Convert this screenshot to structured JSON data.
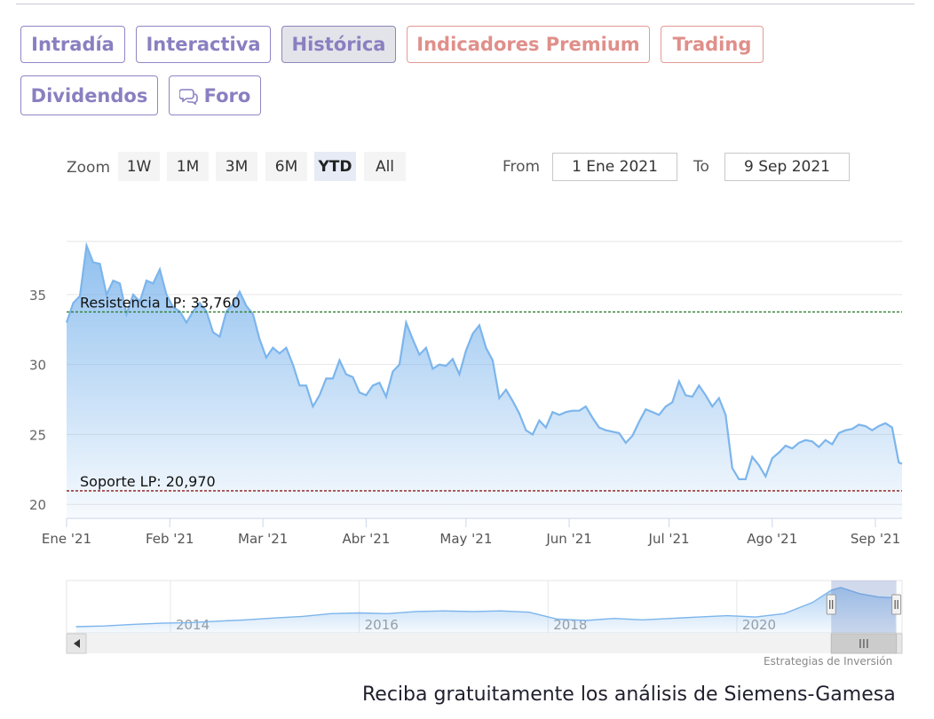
{
  "tabs": [
    {
      "label": "Intradía",
      "style": "normal"
    },
    {
      "label": "Interactiva",
      "style": "normal"
    },
    {
      "label": "Histórica",
      "style": "active"
    },
    {
      "label": "Indicadores Premium",
      "style": "premium"
    },
    {
      "label": "Trading",
      "style": "premium"
    },
    {
      "label": "Dividendos",
      "style": "normal"
    },
    {
      "label": "Foro",
      "style": "normal",
      "icon": "chat-bubbles-icon"
    }
  ],
  "zoom": {
    "label": "Zoom",
    "buttons": [
      "1W",
      "1M",
      "3M",
      "6M",
      "YTD",
      "All"
    ],
    "selected": "YTD"
  },
  "range": {
    "from_label": "From",
    "from_value": "1 Ene 2021",
    "to_label": "To",
    "to_value": "9 Sep 2021"
  },
  "chart_data": {
    "type": "area",
    "color": "#7cb5ec",
    "ylim": [
      19,
      38.8
    ],
    "y_ticks": [
      20,
      25,
      30,
      35
    ],
    "x_ticks": [
      {
        "label": "Ene '21",
        "x": 0
      },
      {
        "label": "Feb '21",
        "x": 31
      },
      {
        "label": "Mar '21",
        "x": 59
      },
      {
        "label": "Abr '21",
        "x": 90
      },
      {
        "label": "May '21",
        "x": 120
      },
      {
        "label": "Jun '21",
        "x": 151
      },
      {
        "label": "Jul '21",
        "x": 181
      },
      {
        "label": "Ago '21",
        "x": 212
      },
      {
        "label": "Sep '21",
        "x": 243
      }
    ],
    "x_max": 251,
    "x": [
      0,
      2,
      4,
      6,
      8,
      10,
      12,
      14,
      16,
      18,
      20,
      22,
      24,
      26,
      28,
      30,
      32,
      34,
      36,
      38,
      40,
      42,
      44,
      46,
      48,
      50,
      52,
      54,
      56,
      58,
      60,
      62,
      64,
      66,
      68,
      70,
      72,
      74,
      76,
      78,
      80,
      82,
      84,
      86,
      88,
      90,
      92,
      94,
      96,
      98,
      100,
      102,
      104,
      106,
      108,
      110,
      112,
      114,
      116,
      118,
      120,
      122,
      124,
      126,
      128,
      130,
      132,
      134,
      136,
      138,
      140,
      142,
      144,
      146,
      148,
      150,
      152,
      154,
      156,
      158,
      160,
      162,
      164,
      166,
      168,
      170,
      172,
      174,
      176,
      178,
      180,
      182,
      184,
      186,
      188,
      190,
      192,
      194,
      196,
      198,
      200,
      202,
      204,
      206,
      208,
      210,
      212,
      214,
      216,
      218,
      220,
      222,
      224,
      226,
      228,
      230,
      232,
      234,
      236,
      238,
      240,
      242,
      244,
      246,
      248,
      250,
      251
    ],
    "values": [
      33.0,
      34.4,
      34.9,
      38.5,
      37.3,
      37.2,
      35.0,
      36.0,
      35.8,
      33.6,
      35.0,
      34.5,
      36.0,
      35.8,
      36.8,
      35.0,
      34.1,
      33.8,
      33.0,
      33.8,
      34.4,
      33.8,
      32.3,
      32.0,
      33.8,
      34.3,
      35.2,
      34.2,
      33.6,
      31.8,
      30.5,
      31.2,
      30.8,
      31.2,
      30.0,
      28.5,
      28.5,
      27.0,
      27.8,
      29.0,
      29.0,
      30.3,
      29.3,
      29.1,
      28.0,
      27.8,
      28.5,
      28.7,
      27.7,
      29.5,
      30.0,
      33.0,
      31.8,
      30.7,
      31.2,
      29.7,
      30.0,
      29.9,
      30.4,
      29.3,
      31.0,
      32.2,
      32.8,
      31.2,
      30.3,
      27.6,
      28.2,
      27.4,
      26.5,
      25.3,
      25.0,
      26.0,
      25.5,
      26.6,
      26.4,
      26.6,
      26.7,
      26.7,
      27.0,
      26.2,
      25.5,
      25.3,
      25.2,
      25.1,
      24.4,
      24.9,
      25.9,
      26.8,
      26.6,
      26.4,
      27.0,
      27.3,
      28.8,
      27.8,
      27.7,
      28.5,
      27.8,
      27.0,
      27.6,
      26.4,
      22.6,
      21.8,
      21.8,
      23.4,
      22.8,
      22.0,
      23.3,
      23.7,
      24.2,
      24.0,
      24.4,
      24.6,
      24.5,
      24.1,
      24.6,
      24.3,
      25.1,
      25.3,
      25.4,
      25.7,
      25.6,
      25.3,
      25.6,
      25.8,
      25.5,
      23.0,
      22.9
    ],
    "plot_lines": [
      {
        "label": "Resistencia LP: 33,760",
        "value": 33.76,
        "color": "#2e7d32"
      },
      {
        "label": "Soporte LP: 20,970",
        "value": 20.97,
        "color": "#8b1a1a"
      }
    ],
    "navigator": {
      "labels": [
        {
          "label": "2014",
          "x": 2014
        },
        {
          "label": "2016",
          "x": 2016
        },
        {
          "label": "2018",
          "x": 2018
        },
        {
          "label": "2020",
          "x": 2020
        }
      ],
      "x_range": [
        2012.9,
        2021.75
      ],
      "selected_range": [
        2021.0,
        2021.69
      ],
      "x": [
        2013.0,
        2013.3,
        2013.6,
        2013.9,
        2014.2,
        2014.5,
        2014.8,
        2015.1,
        2015.4,
        2015.7,
        2016.0,
        2016.3,
        2016.6,
        2016.9,
        2017.2,
        2017.5,
        2017.8,
        2018.1,
        2018.4,
        2018.7,
        2019.0,
        2019.3,
        2019.6,
        2019.9,
        2020.2,
        2020.5,
        2020.8,
        2021.0,
        2021.1,
        2021.3,
        2021.5,
        2021.68
      ],
      "values": [
        4.5,
        5.0,
        6.2,
        7.0,
        7.5,
        8.5,
        9.5,
        10.8,
        12.0,
        14.0,
        14.5,
        14.0,
        15.5,
        16.0,
        15.5,
        16.0,
        15.0,
        10.0,
        9.0,
        10.5,
        9.5,
        10.5,
        11.5,
        12.5,
        11.5,
        14.0,
        22.0,
        31.0,
        33.0,
        28.5,
        26.0,
        25.5
      ],
      "ylim": [
        0,
        38
      ]
    }
  },
  "credit": "Estrategias de Inversión",
  "footer": "Reciba gratuitamente los análisis de Siemens-Gamesa"
}
